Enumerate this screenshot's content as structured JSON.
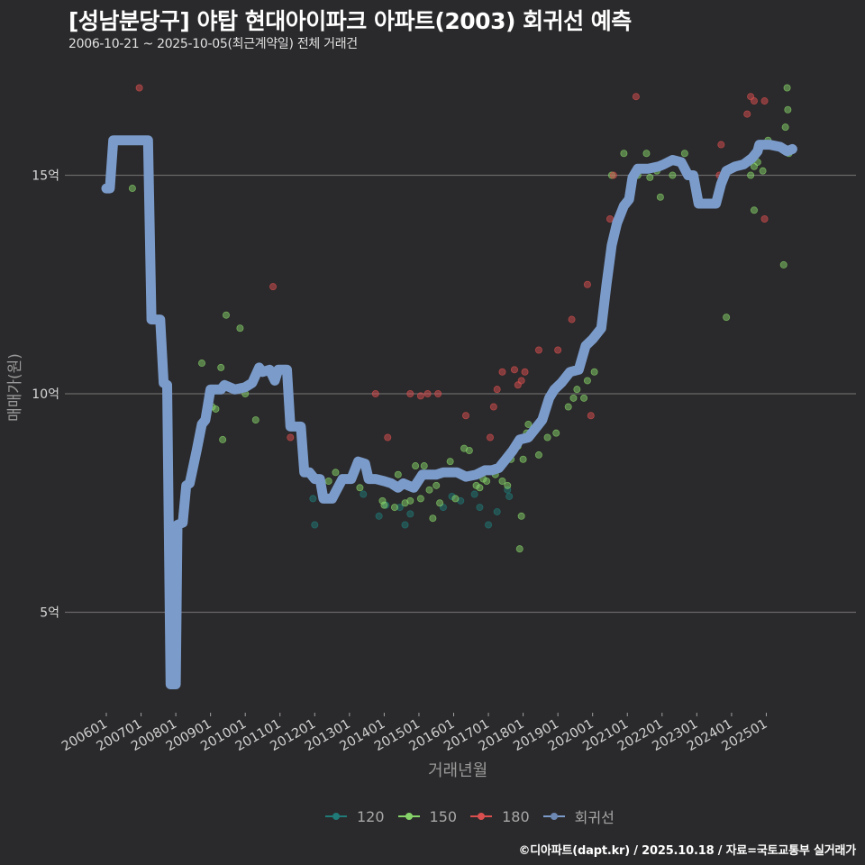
{
  "header": {
    "title": "[성남분당구] 야탑 현대아이파크 아파트(2003) 회귀선 예측",
    "subtitle": "2006-10-21 ~ 2025-10-05(최근계약일) 전체 거래건"
  },
  "footer": {
    "credit": "©디아파트(dapt.kr) / 2025.10.18 / 자료=국토교통부 실거래가"
  },
  "legend": {
    "items": [
      {
        "label": "120",
        "color": "#1f7a78"
      },
      {
        "label": "150",
        "color": "#86d36a"
      },
      {
        "label": "180",
        "color": "#d94f4f"
      },
      {
        "label": "회귀선",
        "color": "#7b9ccb"
      }
    ]
  },
  "axes": {
    "xlabel": "거래년월",
    "ylabel": "매매가(원)",
    "y_ticks": [
      {
        "label": "15억",
        "value": 15
      },
      {
        "label": "10억",
        "value": 10
      },
      {
        "label": "5억",
        "value": 5
      }
    ],
    "x_ticks": [
      "200601",
      "200701",
      "200801",
      "200901",
      "201001",
      "201101",
      "201201",
      "201301",
      "201401",
      "201501",
      "201601",
      "201701",
      "201801",
      "201901",
      "202001",
      "202101",
      "202201",
      "202301",
      "202401",
      "202501"
    ]
  },
  "colors": {
    "background": "#2a292b",
    "grid": "#6a6a6a",
    "regression": "#7b9ccb",
    "area_120": "#1f7a78",
    "area_150": "#86d36a",
    "area_180": "#d94f4f"
  },
  "chart_data": {
    "type": "scatter",
    "title": "[성남분당구] 야탑 현대아이파크 아파트(2003) 회귀선 예측",
    "subtitle": "2006-10-21 ~ 2025-10-05(최근계약일) 전체 거래건",
    "xlabel": "거래년월",
    "ylabel": "매매가(원)",
    "y_unit": "억",
    "ylim": [
      2.5,
      17.5
    ],
    "xlim": [
      "2005-12",
      "2025-12"
    ],
    "grid": "horizontal major",
    "legend_position": "bottom",
    "x_tick_labels": [
      "200601",
      "200701",
      "200801",
      "200901",
      "201001",
      "201101",
      "201201",
      "201301",
      "201401",
      "201501",
      "201601",
      "201701",
      "201801",
      "201901",
      "202001",
      "202101",
      "202201",
      "202301",
      "202401",
      "202501"
    ],
    "y_tick_labels": [
      "5억",
      "10억",
      "15억"
    ],
    "series": [
      {
        "name": "120",
        "kind": "scatter",
        "color": "#1f7a78",
        "points": [
          [
            2011.95,
            7.6
          ],
          [
            2012.0,
            7.0
          ],
          [
            2013.4,
            7.7
          ],
          [
            2013.85,
            7.2
          ],
          [
            2014.05,
            7.45
          ],
          [
            2014.45,
            7.4
          ],
          [
            2014.6,
            7.0
          ],
          [
            2014.75,
            7.25
          ],
          [
            2015.7,
            7.4
          ],
          [
            2015.95,
            7.65
          ],
          [
            2016.2,
            7.55
          ],
          [
            2016.6,
            7.7
          ],
          [
            2016.75,
            7.4
          ],
          [
            2017.0,
            7.0
          ],
          [
            2017.25,
            7.3
          ],
          [
            2017.55,
            7.8
          ],
          [
            2017.6,
            7.65
          ]
        ]
      },
      {
        "name": "150",
        "kind": "scatter",
        "color": "#86d36a",
        "points": [
          [
            2006.75,
            14.7
          ],
          [
            2008.75,
            10.7
          ],
          [
            2009.05,
            9.7
          ],
          [
            2009.15,
            9.65
          ],
          [
            2009.3,
            10.6
          ],
          [
            2009.35,
            8.95
          ],
          [
            2009.45,
            11.8
          ],
          [
            2009.6,
            10.15
          ],
          [
            2009.85,
            11.5
          ],
          [
            2010.0,
            10.0
          ],
          [
            2010.3,
            9.4
          ],
          [
            2012.4,
            8.0
          ],
          [
            2012.6,
            8.2
          ],
          [
            2013.05,
            8.05
          ],
          [
            2013.3,
            7.85
          ],
          [
            2013.95,
            7.55
          ],
          [
            2014.0,
            7.45
          ],
          [
            2014.3,
            7.4
          ],
          [
            2014.4,
            8.15
          ],
          [
            2014.6,
            7.5
          ],
          [
            2014.75,
            7.55
          ],
          [
            2014.9,
            8.35
          ],
          [
            2015.05,
            7.6
          ],
          [
            2015.15,
            8.35
          ],
          [
            2015.3,
            7.8
          ],
          [
            2015.4,
            7.15
          ],
          [
            2015.5,
            7.9
          ],
          [
            2015.6,
            7.5
          ],
          [
            2015.9,
            8.45
          ],
          [
            2016.05,
            7.6
          ],
          [
            2016.3,
            8.75
          ],
          [
            2016.45,
            8.7
          ],
          [
            2016.65,
            7.9
          ],
          [
            2016.75,
            7.85
          ],
          [
            2016.85,
            8.05
          ],
          [
            2016.95,
            8.0
          ],
          [
            2017.2,
            8.15
          ],
          [
            2017.4,
            8.0
          ],
          [
            2017.55,
            7.9
          ],
          [
            2017.65,
            8.5
          ],
          [
            2017.85,
            8.8
          ],
          [
            2017.9,
            6.45
          ],
          [
            2017.95,
            7.2
          ],
          [
            2018.0,
            8.5
          ],
          [
            2018.1,
            9.1
          ],
          [
            2018.15,
            9.3
          ],
          [
            2018.45,
            8.6
          ],
          [
            2018.7,
            9.0
          ],
          [
            2018.95,
            9.1
          ],
          [
            2019.3,
            9.7
          ],
          [
            2019.45,
            9.9
          ],
          [
            2019.55,
            10.1
          ],
          [
            2019.75,
            9.9
          ],
          [
            2019.85,
            10.3
          ],
          [
            2020.05,
            10.5
          ],
          [
            2020.35,
            12.1
          ],
          [
            2020.55,
            15.0
          ],
          [
            2020.9,
            15.5
          ],
          [
            2021.3,
            15.0
          ],
          [
            2021.55,
            15.5
          ],
          [
            2021.65,
            14.95
          ],
          [
            2021.85,
            15.1
          ],
          [
            2021.95,
            14.5
          ],
          [
            2022.3,
            15.0
          ],
          [
            2022.65,
            15.5
          ],
          [
            2023.85,
            11.75
          ],
          [
            2024.55,
            15.0
          ],
          [
            2024.65,
            15.2
          ],
          [
            2024.75,
            15.3
          ],
          [
            2024.9,
            15.1
          ],
          [
            2025.05,
            15.8
          ],
          [
            2025.5,
            12.95
          ],
          [
            2025.55,
            16.1
          ],
          [
            2025.6,
            17.0
          ],
          [
            2025.62,
            16.5
          ],
          [
            2025.65,
            15.5
          ],
          [
            2024.65,
            14.2
          ]
        ]
      },
      {
        "name": "180",
        "kind": "scatter",
        "color": "#d94f4f",
        "points": [
          [
            2006.95,
            17.0
          ],
          [
            2008.95,
            9.7
          ],
          [
            2010.8,
            12.45
          ],
          [
            2011.3,
            9.0
          ],
          [
            2013.75,
            10.0
          ],
          [
            2014.1,
            9.0
          ],
          [
            2014.75,
            10.0
          ],
          [
            2015.05,
            9.95
          ],
          [
            2015.25,
            10.0
          ],
          [
            2015.55,
            10.0
          ],
          [
            2016.35,
            9.5
          ],
          [
            2017.05,
            9.0
          ],
          [
            2017.15,
            9.7
          ],
          [
            2017.25,
            10.1
          ],
          [
            2017.4,
            10.5
          ],
          [
            2017.75,
            10.55
          ],
          [
            2017.85,
            10.2
          ],
          [
            2017.95,
            10.3
          ],
          [
            2018.05,
            10.5
          ],
          [
            2018.45,
            11.0
          ],
          [
            2019.0,
            11.0
          ],
          [
            2019.4,
            11.7
          ],
          [
            2019.85,
            12.5
          ],
          [
            2019.95,
            9.5
          ],
          [
            2020.5,
            14.0
          ],
          [
            2020.6,
            15.0
          ],
          [
            2021.25,
            16.8
          ],
          [
            2023.65,
            15.0
          ],
          [
            2023.7,
            15.7
          ],
          [
            2024.45,
            16.4
          ],
          [
            2024.55,
            16.8
          ],
          [
            2024.65,
            16.7
          ],
          [
            2024.95,
            16.7
          ],
          [
            2024.95,
            14.0
          ]
        ]
      },
      {
        "name": "회귀선",
        "kind": "line",
        "color": "#7b9ccb",
        "points": [
          [
            2006.0,
            14.7
          ],
          [
            2006.1,
            14.7
          ],
          [
            2006.2,
            15.8
          ],
          [
            2007.2,
            15.8
          ],
          [
            2007.3,
            11.7
          ],
          [
            2007.55,
            11.7
          ],
          [
            2007.65,
            10.25
          ],
          [
            2007.75,
            10.2
          ],
          [
            2007.85,
            3.35
          ],
          [
            2008.0,
            3.35
          ],
          [
            2008.05,
            7.0
          ],
          [
            2008.2,
            7.05
          ],
          [
            2008.3,
            7.9
          ],
          [
            2008.4,
            7.95
          ],
          [
            2008.6,
            8.7
          ],
          [
            2008.75,
            9.3
          ],
          [
            2008.85,
            9.4
          ],
          [
            2009.0,
            10.1
          ],
          [
            2009.3,
            10.1
          ],
          [
            2009.4,
            10.2
          ],
          [
            2009.7,
            10.1
          ],
          [
            2010.0,
            10.15
          ],
          [
            2010.2,
            10.25
          ],
          [
            2010.4,
            10.6
          ],
          [
            2010.5,
            10.5
          ],
          [
            2010.7,
            10.55
          ],
          [
            2010.85,
            10.3
          ],
          [
            2010.95,
            10.55
          ],
          [
            2011.2,
            10.55
          ],
          [
            2011.3,
            9.25
          ],
          [
            2011.6,
            9.25
          ],
          [
            2011.7,
            8.2
          ],
          [
            2011.85,
            8.2
          ],
          [
            2012.0,
            8.05
          ],
          [
            2012.15,
            8.05
          ],
          [
            2012.25,
            7.6
          ],
          [
            2012.5,
            7.6
          ],
          [
            2012.6,
            7.75
          ],
          [
            2012.8,
            8.05
          ],
          [
            2013.05,
            8.05
          ],
          [
            2013.25,
            8.45
          ],
          [
            2013.45,
            8.4
          ],
          [
            2013.55,
            8.05
          ],
          [
            2013.75,
            8.05
          ],
          [
            2014.0,
            8.0
          ],
          [
            2014.2,
            7.95
          ],
          [
            2014.4,
            7.85
          ],
          [
            2014.55,
            7.95
          ],
          [
            2014.7,
            7.9
          ],
          [
            2014.85,
            7.85
          ],
          [
            2015.1,
            8.15
          ],
          [
            2015.5,
            8.15
          ],
          [
            2015.7,
            8.2
          ],
          [
            2016.1,
            8.2
          ],
          [
            2016.35,
            8.1
          ],
          [
            2016.65,
            8.15
          ],
          [
            2016.9,
            8.25
          ],
          [
            2017.1,
            8.25
          ],
          [
            2017.3,
            8.3
          ],
          [
            2017.5,
            8.5
          ],
          [
            2017.7,
            8.7
          ],
          [
            2017.9,
            8.95
          ],
          [
            2018.15,
            9.0
          ],
          [
            2018.3,
            9.15
          ],
          [
            2018.55,
            9.4
          ],
          [
            2018.75,
            9.9
          ],
          [
            2018.9,
            10.1
          ],
          [
            2019.1,
            10.25
          ],
          [
            2019.35,
            10.5
          ],
          [
            2019.6,
            10.55
          ],
          [
            2019.8,
            11.1
          ],
          [
            2020.0,
            11.25
          ],
          [
            2020.25,
            11.5
          ],
          [
            2020.4,
            12.5
          ],
          [
            2020.55,
            13.4
          ],
          [
            2020.7,
            13.9
          ],
          [
            2020.9,
            14.3
          ],
          [
            2021.05,
            14.45
          ],
          [
            2021.15,
            14.95
          ],
          [
            2021.3,
            15.15
          ],
          [
            2021.6,
            15.15
          ],
          [
            2021.9,
            15.2
          ],
          [
            2022.05,
            15.25
          ],
          [
            2022.3,
            15.35
          ],
          [
            2022.55,
            15.3
          ],
          [
            2022.75,
            15.0
          ],
          [
            2022.9,
            15.0
          ],
          [
            2023.05,
            14.35
          ],
          [
            2023.55,
            14.35
          ],
          [
            2023.7,
            14.8
          ],
          [
            2023.85,
            15.1
          ],
          [
            2024.1,
            15.2
          ],
          [
            2024.35,
            15.25
          ],
          [
            2024.6,
            15.4
          ],
          [
            2024.75,
            15.55
          ],
          [
            2024.8,
            15.7
          ],
          [
            2025.1,
            15.7
          ],
          [
            2025.4,
            15.65
          ],
          [
            2025.6,
            15.55
          ],
          [
            2025.75,
            15.6
          ]
        ]
      }
    ]
  }
}
